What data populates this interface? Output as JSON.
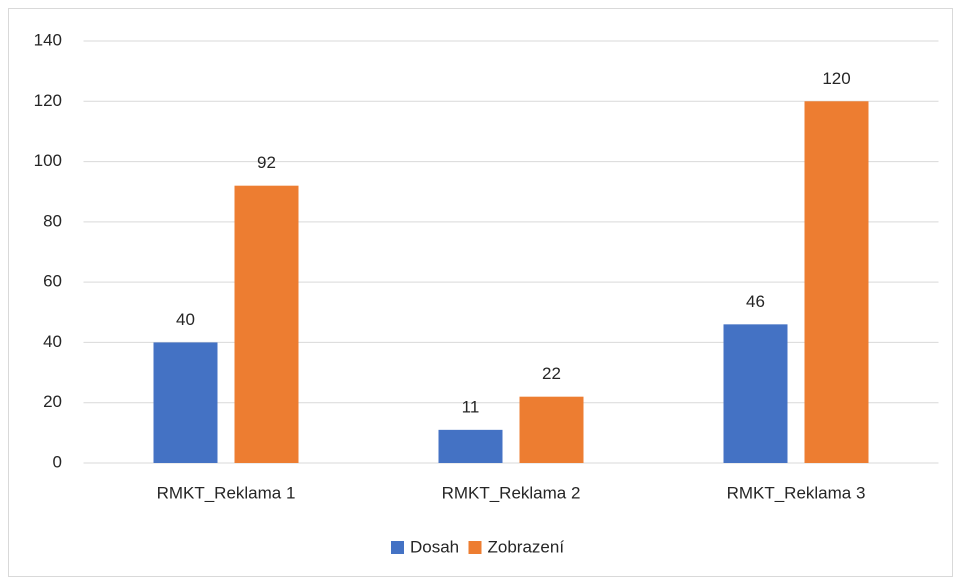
{
  "chart_data": {
    "type": "bar",
    "categories": [
      "RMKT_Reklama 1",
      "RMKT_Reklama 2",
      "RMKT_Reklama 3"
    ],
    "series": [
      {
        "name": "Dosah",
        "color": "#4472c4",
        "values": [
          40,
          11,
          46
        ]
      },
      {
        "name": "Zobrazení",
        "color": "#ed7d31",
        "values": [
          92,
          22,
          120
        ]
      }
    ],
    "ylim": [
      0,
      140
    ],
    "yticks": [
      0,
      20,
      40,
      60,
      80,
      100,
      120,
      140
    ],
    "grid": true,
    "legend": "bottom"
  }
}
